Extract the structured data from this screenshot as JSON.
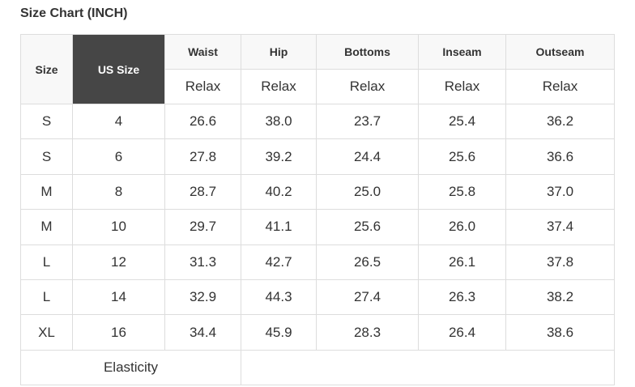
{
  "title": "Size Chart (INCH)",
  "colors": {
    "header_bg": "#f8f8f8",
    "highlight_header_bg": "#464646",
    "border": "#dddddd"
  },
  "headers": {
    "size": "Size",
    "us_size": "US Size",
    "measures": [
      "Waist",
      "Hip",
      "Bottoms",
      "Inseam",
      "Outseam"
    ],
    "sub": [
      "Relax",
      "Relax",
      "Relax",
      "Relax",
      "Relax"
    ]
  },
  "rows": [
    [
      "S",
      "4",
      "26.6",
      "38.0",
      "23.7",
      "25.4",
      "36.2"
    ],
    [
      "S",
      "6",
      "27.8",
      "39.2",
      "24.4",
      "25.6",
      "36.6"
    ],
    [
      "M",
      "8",
      "28.7",
      "40.2",
      "25.0",
      "25.8",
      "37.0"
    ],
    [
      "M",
      "10",
      "29.7",
      "41.1",
      "25.6",
      "26.0",
      "37.4"
    ],
    [
      "L",
      "12",
      "31.3",
      "42.7",
      "26.5",
      "26.1",
      "37.8"
    ],
    [
      "L",
      "14",
      "32.9",
      "44.3",
      "27.4",
      "26.3",
      "38.2"
    ],
    [
      "XL",
      "16",
      "34.4",
      "45.9",
      "28.3",
      "26.4",
      "38.6"
    ]
  ],
  "footer": {
    "label": "Elasticity",
    "value": ""
  }
}
